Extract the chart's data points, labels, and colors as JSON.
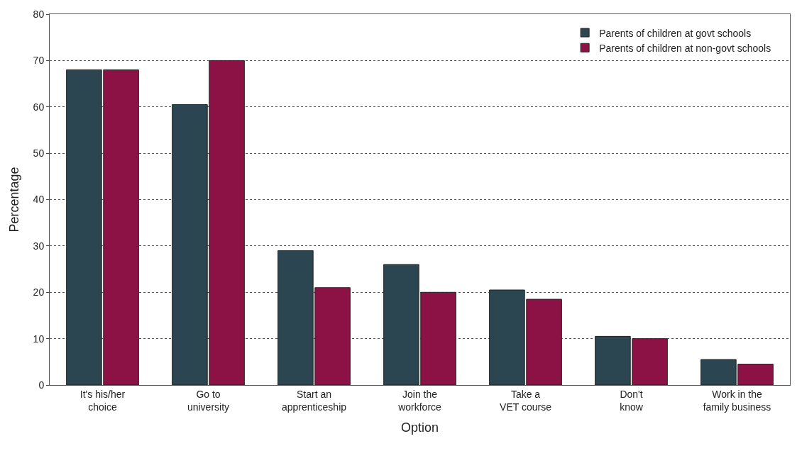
{
  "chart_data": {
    "type": "bar",
    "xlabel": "Option",
    "ylabel": "Percentage",
    "categories": [
      "It's his/her\nchoice",
      "Go to\nuniversity",
      "Start an\napprenticeship",
      "Join the\nworkforce",
      "Take a\nVET course",
      "Don't\nknow",
      "Work in the\nfamily business"
    ],
    "series": [
      {
        "name": "Parents of children at govt schools",
        "color": "#2b4650",
        "values": [
          68,
          60.5,
          29,
          26,
          20.5,
          10.5,
          5.5
        ]
      },
      {
        "name": "Parents of children at non-govt schools",
        "color": "#8c1246",
        "values": [
          68,
          70,
          21,
          20,
          18.5,
          10,
          4.5
        ]
      }
    ],
    "ylim": [
      0,
      80
    ],
    "yticks": [
      0,
      10,
      20,
      30,
      40,
      50,
      60,
      70,
      80
    ],
    "grid": "y",
    "legend": "top right"
  }
}
